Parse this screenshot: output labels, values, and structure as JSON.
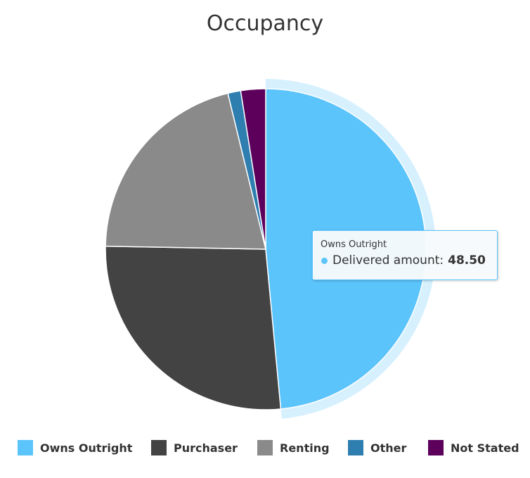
{
  "chart_data": {
    "type": "pie",
    "title": "Occupancy",
    "series_name": "Delivered amount",
    "categories": [
      "Owns Outright",
      "Purchaser",
      "Renting",
      "Other",
      "Not Stated"
    ],
    "values": [
      48.5,
      26.8,
      20.9,
      1.3,
      2.5
    ],
    "colors": [
      "#5bc4fb",
      "#434343",
      "#8a8a8a",
      "#2f7eb0",
      "#5c005c"
    ],
    "legend_position": "bottom",
    "highlighted_slice": "Owns Outright"
  },
  "tooltip": {
    "category": "Owns Outright",
    "series_label": "Delivered amount:",
    "value": "48.50",
    "dot_color": "#5bc4fb"
  }
}
